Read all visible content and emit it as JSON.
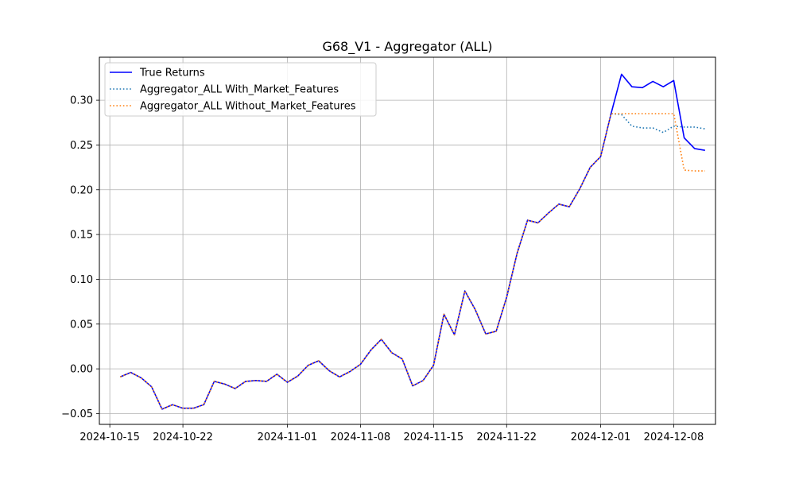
{
  "chart_data": {
    "type": "line",
    "title": "G68_V1 - Aggregator (ALL)",
    "xlabel": "",
    "ylabel": "",
    "grid": true,
    "legend_position": "upper-left",
    "x_axis_type": "date",
    "xlim": [
      "2024-10-14",
      "2024-12-12"
    ],
    "ylim": [
      -0.062,
      0.348
    ],
    "x_ticks": [
      "2024-10-15",
      "2024-10-22",
      "2024-11-01",
      "2024-11-08",
      "2024-11-15",
      "2024-11-22",
      "2024-12-01",
      "2024-12-08"
    ],
    "y_ticks": [
      -0.05,
      0.0,
      0.05,
      0.1,
      0.15,
      0.2,
      0.25,
      0.3
    ],
    "y_tick_labels": [
      "−0.05",
      "0.00",
      "0.05",
      "0.10",
      "0.15",
      "0.20",
      "0.25",
      "0.30"
    ],
    "x": [
      "2024-10-16",
      "2024-10-17",
      "2024-10-18",
      "2024-10-19",
      "2024-10-20",
      "2024-10-21",
      "2024-10-22",
      "2024-10-23",
      "2024-10-24",
      "2024-10-25",
      "2024-10-26",
      "2024-10-27",
      "2024-10-28",
      "2024-10-29",
      "2024-10-30",
      "2024-10-31",
      "2024-11-01",
      "2024-11-02",
      "2024-11-03",
      "2024-11-04",
      "2024-11-05",
      "2024-11-06",
      "2024-11-07",
      "2024-11-08",
      "2024-11-09",
      "2024-11-10",
      "2024-11-11",
      "2024-11-12",
      "2024-11-13",
      "2024-11-14",
      "2024-11-15",
      "2024-11-16",
      "2024-11-17",
      "2024-11-18",
      "2024-11-19",
      "2024-11-20",
      "2024-11-21",
      "2024-11-22",
      "2024-11-23",
      "2024-11-24",
      "2024-11-25",
      "2024-11-26",
      "2024-11-27",
      "2024-11-28",
      "2024-11-29",
      "2024-11-30",
      "2024-12-01",
      "2024-12-02",
      "2024-12-03",
      "2024-12-04",
      "2024-12-05",
      "2024-12-06",
      "2024-12-07",
      "2024-12-08",
      "2024-12-09",
      "2024-12-10",
      "2024-12-11"
    ],
    "series": [
      {
        "name": "True Returns",
        "color": "#0000ff",
        "style": "solid",
        "values": [
          -0.009,
          -0.004,
          -0.01,
          -0.02,
          -0.045,
          -0.04,
          -0.044,
          -0.044,
          -0.04,
          -0.014,
          -0.017,
          -0.022,
          -0.014,
          -0.013,
          -0.014,
          -0.006,
          -0.015,
          -0.008,
          0.004,
          0.009,
          -0.002,
          -0.009,
          -0.003,
          0.005,
          0.021,
          0.033,
          0.018,
          0.011,
          -0.019,
          -0.013,
          0.004,
          0.061,
          0.038,
          0.087,
          0.066,
          0.039,
          0.042,
          0.08,
          0.129,
          0.166,
          0.163,
          0.174,
          0.184,
          0.181,
          0.201,
          0.225,
          0.237,
          0.285,
          0.329,
          0.315,
          0.314,
          0.321,
          0.315,
          0.322,
          0.258,
          0.246,
          0.244
        ]
      },
      {
        "name": "Aggregator_ALL With_Market_Features",
        "color": "#1f77b4",
        "style": "dotted",
        "values": [
          -0.009,
          -0.004,
          -0.01,
          -0.02,
          -0.045,
          -0.04,
          -0.044,
          -0.044,
          -0.04,
          -0.014,
          -0.017,
          -0.022,
          -0.014,
          -0.013,
          -0.014,
          -0.006,
          -0.015,
          -0.008,
          0.004,
          0.009,
          -0.002,
          -0.009,
          -0.003,
          0.005,
          0.021,
          0.033,
          0.018,
          0.011,
          -0.019,
          -0.013,
          0.004,
          0.061,
          0.038,
          0.087,
          0.066,
          0.039,
          0.042,
          0.08,
          0.129,
          0.166,
          0.163,
          0.174,
          0.184,
          0.181,
          0.201,
          0.225,
          0.237,
          0.285,
          0.284,
          0.271,
          0.269,
          0.269,
          0.264,
          0.271,
          0.27,
          0.27,
          0.268
        ]
      },
      {
        "name": "Aggregator_ALL Without_Market_Features",
        "color": "#ff7f0e",
        "style": "dotted",
        "values": [
          -0.009,
          -0.004,
          -0.01,
          -0.02,
          -0.045,
          -0.04,
          -0.044,
          -0.044,
          -0.04,
          -0.014,
          -0.017,
          -0.022,
          -0.014,
          -0.013,
          -0.014,
          -0.006,
          -0.015,
          -0.008,
          0.004,
          0.009,
          -0.002,
          -0.009,
          -0.003,
          0.005,
          0.021,
          0.033,
          0.018,
          0.011,
          -0.019,
          -0.013,
          0.004,
          0.061,
          0.038,
          0.087,
          0.066,
          0.039,
          0.042,
          0.08,
          0.129,
          0.166,
          0.163,
          0.174,
          0.184,
          0.181,
          0.201,
          0.225,
          0.237,
          0.285,
          0.285,
          0.285,
          0.285,
          0.285,
          0.285,
          0.285,
          0.222,
          0.221,
          0.221
        ]
      }
    ]
  }
}
